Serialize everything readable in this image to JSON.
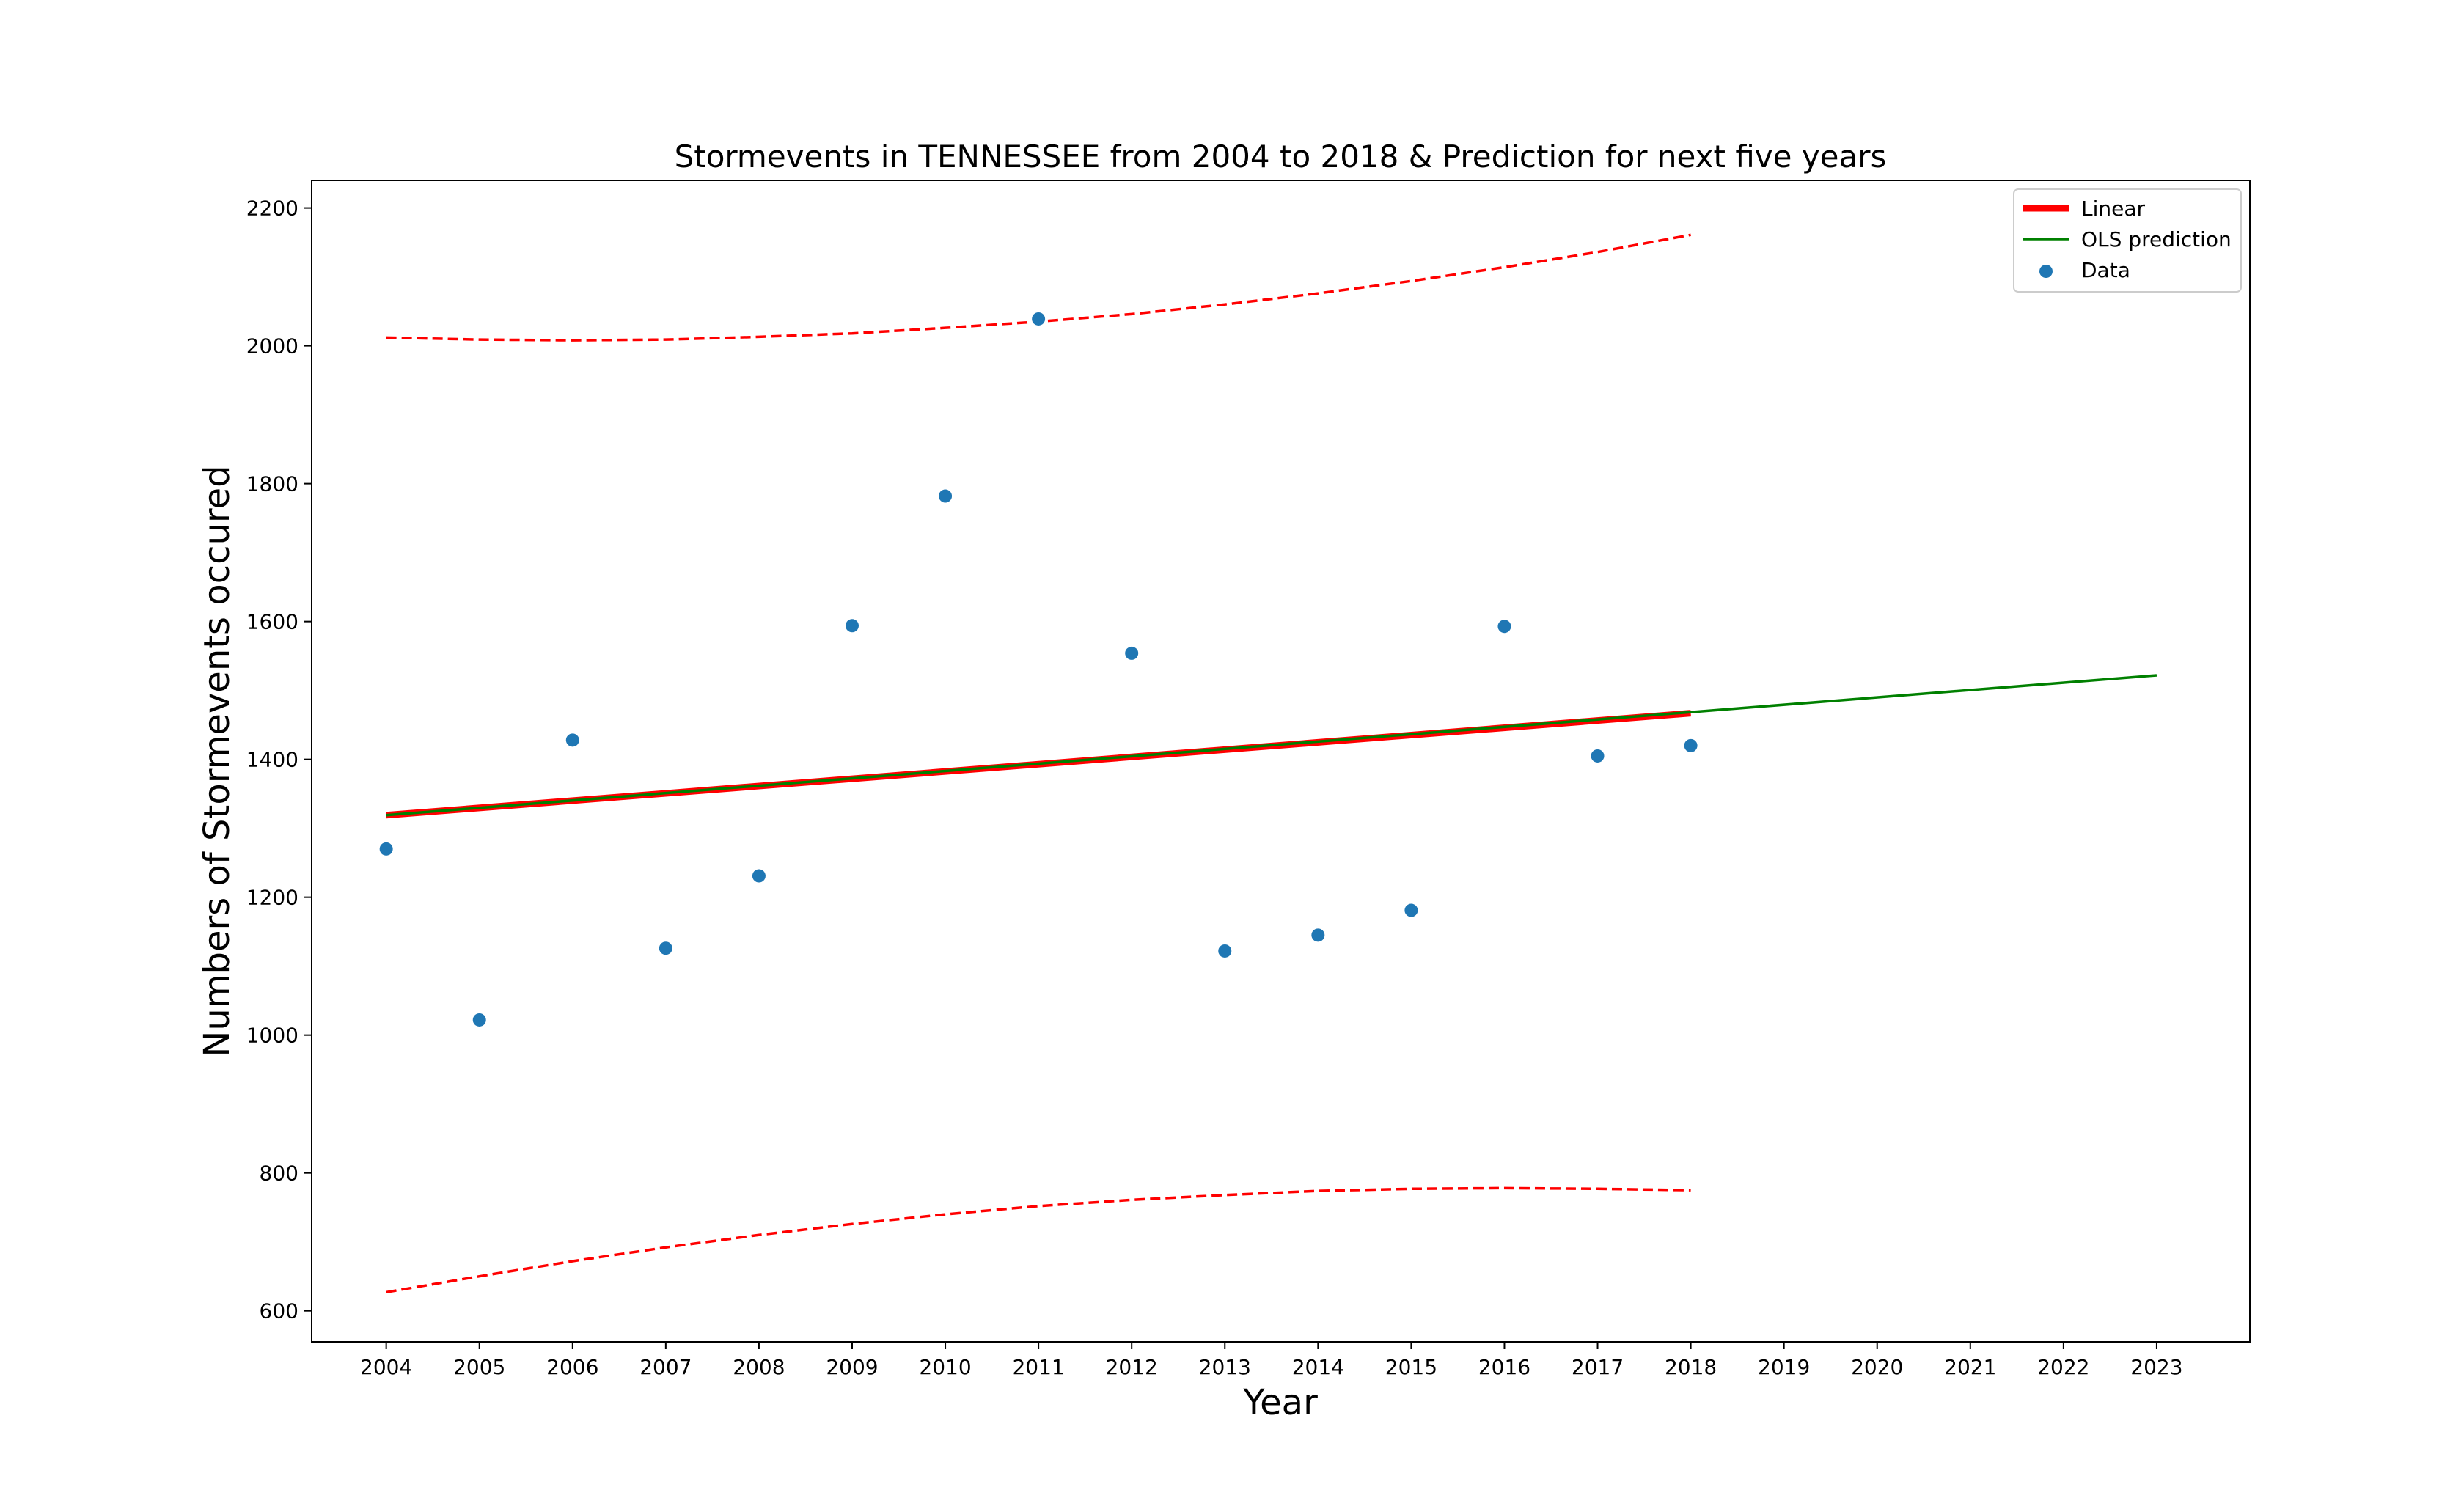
{
  "chart_data": {
    "type": "scatter",
    "title": "Stormevents in TENNESSEE from 2004 to 2018 & Prediction for next five years",
    "xlabel": "Year",
    "ylabel": "Numbers of Stormevents occured",
    "xlim": [
      2003.2,
      2024.0
    ],
    "ylim": [
      555,
      2240
    ],
    "xticks": [
      2004,
      2005,
      2006,
      2007,
      2008,
      2009,
      2010,
      2011,
      2012,
      2013,
      2014,
      2015,
      2016,
      2017,
      2018,
      2019,
      2020,
      2021,
      2022,
      2023
    ],
    "yticks": [
      600,
      800,
      1000,
      1200,
      1400,
      1600,
      1800,
      2000,
      2200
    ],
    "grid": false,
    "legend_position": "top-right",
    "series": [
      {
        "name": "Data",
        "kind": "scatter",
        "color": "#1f77b4",
        "points": [
          {
            "x": 2004,
            "y": 1270
          },
          {
            "x": 2005,
            "y": 1022
          },
          {
            "x": 2006,
            "y": 1428
          },
          {
            "x": 2007,
            "y": 1126
          },
          {
            "x": 2008,
            "y": 1231
          },
          {
            "x": 2009,
            "y": 1594
          },
          {
            "x": 2010,
            "y": 1782
          },
          {
            "x": 2011,
            "y": 2039
          },
          {
            "x": 2012,
            "y": 1554
          },
          {
            "x": 2013,
            "y": 1122
          },
          {
            "x": 2014,
            "y": 1145
          },
          {
            "x": 2015,
            "y": 1181
          },
          {
            "x": 2016,
            "y": 1593
          },
          {
            "x": 2017,
            "y": 1405
          },
          {
            "x": 2018,
            "y": 1420
          }
        ]
      },
      {
        "name": "Linear",
        "kind": "line",
        "color": "#ff0000",
        "points": [
          {
            "x": 2004,
            "y": 1319
          },
          {
            "x": 2018,
            "y": 1467
          }
        ]
      },
      {
        "name": "OLS prediction",
        "kind": "line",
        "color": "#008000",
        "points": [
          {
            "x": 2004,
            "y": 1319
          },
          {
            "x": 2023,
            "y": 1522
          }
        ]
      },
      {
        "kind": "dashed-band-upper",
        "color": "#ff0000",
        "points": [
          {
            "x": 2004,
            "y": 2012
          },
          {
            "x": 2005,
            "y": 2009
          },
          {
            "x": 2006,
            "y": 2008
          },
          {
            "x": 2007,
            "y": 2009
          },
          {
            "x": 2008,
            "y": 2013
          },
          {
            "x": 2009,
            "y": 2018
          },
          {
            "x": 2010,
            "y": 2026
          },
          {
            "x": 2011,
            "y": 2035
          },
          {
            "x": 2012,
            "y": 2046
          },
          {
            "x": 2013,
            "y": 2060
          },
          {
            "x": 2014,
            "y": 2076
          },
          {
            "x": 2015,
            "y": 2094
          },
          {
            "x": 2016,
            "y": 2114
          },
          {
            "x": 2017,
            "y": 2136
          },
          {
            "x": 2018,
            "y": 2161
          }
        ]
      },
      {
        "kind": "dashed-band-lower",
        "color": "#ff0000",
        "points": [
          {
            "x": 2004,
            "y": 627
          },
          {
            "x": 2005,
            "y": 650
          },
          {
            "x": 2006,
            "y": 672
          },
          {
            "x": 2007,
            "y": 692
          },
          {
            "x": 2008,
            "y": 710
          },
          {
            "x": 2009,
            "y": 726
          },
          {
            "x": 2010,
            "y": 740
          },
          {
            "x": 2011,
            "y": 752
          },
          {
            "x": 2012,
            "y": 761
          },
          {
            "x": 2013,
            "y": 768
          },
          {
            "x": 2014,
            "y": 774
          },
          {
            "x": 2015,
            "y": 777
          },
          {
            "x": 2016,
            "y": 778
          },
          {
            "x": 2017,
            "y": 777
          },
          {
            "x": 2018,
            "y": 775
          }
        ]
      }
    ],
    "legend": [
      {
        "label": "Linear",
        "marker": "thick-line",
        "color": "#ff0000"
      },
      {
        "label": "OLS prediction",
        "marker": "line",
        "color": "#008000"
      },
      {
        "label": "Data",
        "marker": "dot",
        "color": "#1f77b4"
      }
    ]
  }
}
